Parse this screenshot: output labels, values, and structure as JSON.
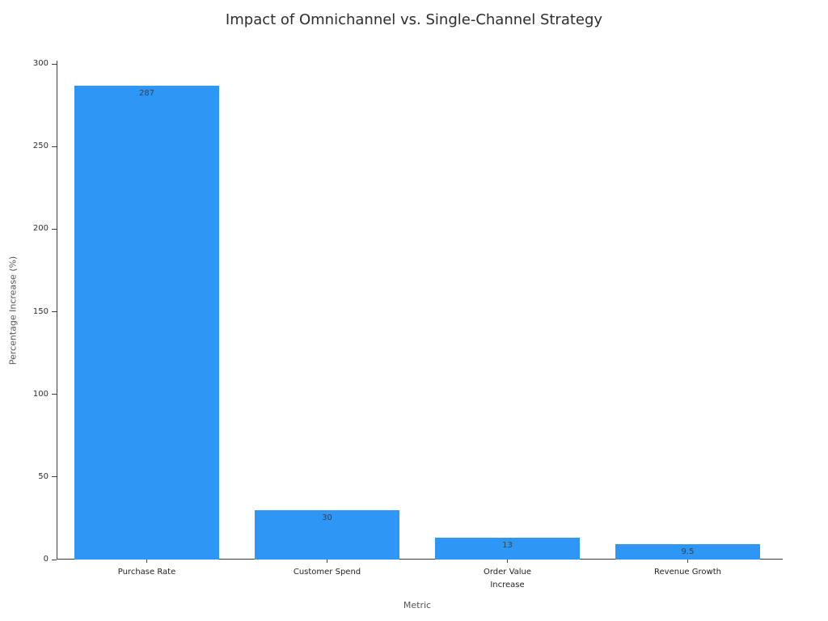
{
  "chart_data": {
    "type": "bar",
    "title": "Impact of Omnichannel vs. Single-Channel Strategy",
    "xlabel": "Metric",
    "ylabel": "Percentage Increase (%)",
    "categories": [
      "Purchase Rate",
      "Customer Spend",
      "Order Value\nIncrease",
      "Revenue Growth"
    ],
    "values": [
      287,
      30,
      13,
      9.5
    ],
    "value_labels": [
      "287",
      "30",
      "13",
      "9.5"
    ],
    "yticks": [
      0,
      50,
      100,
      150,
      200,
      250,
      300
    ],
    "ylim": [
      0,
      302
    ],
    "bar_color": "#2E96F5",
    "grid": false,
    "legend": false
  }
}
